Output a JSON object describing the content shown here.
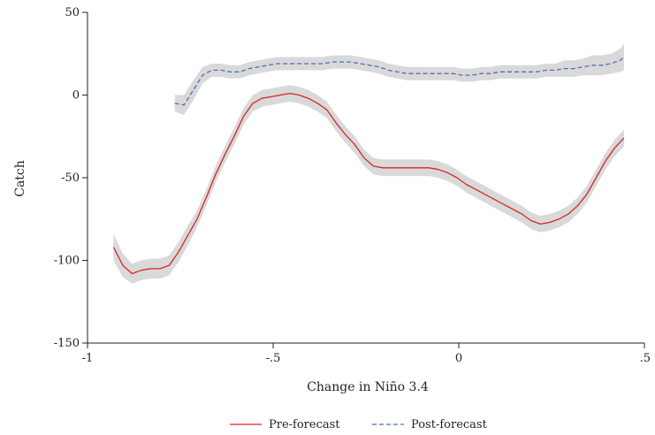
{
  "chart_data": {
    "type": "line",
    "title": "",
    "xlabel": "Change in Niño 3.4",
    "ylabel": "Catch",
    "xlim": [
      -1,
      0.5
    ],
    "ylim": [
      -150,
      50
    ],
    "x_ticks": [
      -1,
      -0.5,
      0,
      0.5
    ],
    "x_tick_labels": [
      "-1",
      "-.5",
      "0",
      ".5"
    ],
    "y_ticks": [
      -150,
      -100,
      -50,
      0,
      50
    ],
    "y_tick_labels": [
      "-150",
      "-100",
      "-50",
      "0",
      "50"
    ],
    "grid": false,
    "legend_position": "bottom",
    "series": [
      {
        "name": "Pre-forecast",
        "color": "#d62728",
        "style": "solid",
        "x": [
          -0.93,
          -0.905,
          -0.88,
          -0.855,
          -0.83,
          -0.805,
          -0.78,
          -0.755,
          -0.73,
          -0.705,
          -0.68,
          -0.655,
          -0.63,
          -0.605,
          -0.58,
          -0.555,
          -0.53,
          -0.505,
          -0.48,
          -0.455,
          -0.43,
          -0.405,
          -0.38,
          -0.355,
          -0.33,
          -0.305,
          -0.28,
          -0.255,
          -0.23,
          -0.205,
          -0.18,
          -0.155,
          -0.13,
          -0.105,
          -0.08,
          -0.055,
          -0.03,
          -0.005,
          0.02,
          0.045,
          0.07,
          0.095,
          0.12,
          0.145,
          0.17,
          0.195,
          0.22,
          0.245,
          0.27,
          0.295,
          0.32,
          0.345,
          0.37,
          0.395,
          0.42,
          0.445
        ],
        "y": [
          -92,
          -103,
          -108,
          -106,
          -105,
          -105,
          -103,
          -95,
          -85,
          -75,
          -62,
          -48,
          -36,
          -25,
          -13,
          -5,
          -2,
          -1,
          0,
          1,
          0,
          -2,
          -5,
          -9,
          -17,
          -24,
          -30,
          -38,
          -43,
          -44,
          -44,
          -44,
          -44,
          -44,
          -44,
          -45,
          -47,
          -50,
          -54,
          -57,
          -60,
          -63,
          -66,
          -69,
          -72,
          -76,
          -78,
          -77,
          -75,
          -72,
          -67,
          -60,
          -50,
          -40,
          -32,
          -26
        ],
        "lower": [
          -100,
          -110,
          -114,
          -112,
          -111,
          -111,
          -109,
          -101,
          -91,
          -80,
          -67,
          -53,
          -41,
          -30,
          -18,
          -10,
          -7,
          -6,
          -5,
          -4,
          -5,
          -7,
          -10,
          -14,
          -22,
          -29,
          -35,
          -43,
          -48,
          -49,
          -49,
          -49,
          -49,
          -49,
          -49,
          -50,
          -52,
          -55,
          -59,
          -62,
          -65,
          -68,
          -71,
          -74,
          -77,
          -81,
          -83,
          -82,
          -80,
          -77,
          -72,
          -65,
          -55,
          -45,
          -37,
          -31
        ],
        "upper": [
          -84,
          -96,
          -102,
          -100,
          -99,
          -99,
          -97,
          -89,
          -79,
          -70,
          -57,
          -43,
          -31,
          -20,
          -8,
          0,
          3,
          4,
          5,
          6,
          5,
          3,
          0,
          -4,
          -12,
          -19,
          -25,
          -33,
          -38,
          -39,
          -39,
          -39,
          -39,
          -39,
          -39,
          -40,
          -42,
          -45,
          -49,
          -52,
          -55,
          -58,
          -61,
          -64,
          -67,
          -71,
          -73,
          -72,
          -70,
          -67,
          -62,
          -55,
          -45,
          -35,
          -27,
          -21
        ]
      },
      {
        "name": "Post-forecast",
        "color": "#4c72b0",
        "style": "dashed",
        "x": [
          -0.765,
          -0.74,
          -0.715,
          -0.69,
          -0.665,
          -0.64,
          -0.615,
          -0.59,
          -0.565,
          -0.54,
          -0.515,
          -0.49,
          -0.465,
          -0.44,
          -0.415,
          -0.39,
          -0.365,
          -0.34,
          -0.315,
          -0.29,
          -0.265,
          -0.24,
          -0.215,
          -0.19,
          -0.165,
          -0.14,
          -0.115,
          -0.09,
          -0.065,
          -0.04,
          -0.015,
          0.01,
          0.035,
          0.06,
          0.085,
          0.11,
          0.135,
          0.16,
          0.185,
          0.21,
          0.235,
          0.26,
          0.285,
          0.31,
          0.335,
          0.36,
          0.385,
          0.41,
          0.435,
          0.445
        ],
        "y": [
          -5,
          -6,
          3,
          12,
          15,
          15,
          14,
          14,
          16,
          17,
          18,
          19,
          19,
          19,
          19,
          19,
          19,
          20,
          20,
          20,
          19,
          18,
          17,
          15,
          14,
          13,
          13,
          13,
          13,
          13,
          13,
          12,
          12,
          13,
          13,
          14,
          14,
          14,
          14,
          14,
          15,
          15,
          16,
          16,
          17,
          18,
          18,
          19,
          21,
          23
        ],
        "lower": [
          -10,
          -12,
          -3,
          7,
          11,
          11,
          10,
          10,
          12,
          13,
          14,
          15,
          15,
          15,
          15,
          15,
          15,
          16,
          16,
          16,
          15,
          14,
          13,
          11,
          10,
          9,
          9,
          9,
          9,
          9,
          9,
          8,
          8,
          9,
          9,
          10,
          10,
          10,
          10,
          10,
          11,
          11,
          11,
          11,
          12,
          12,
          12,
          13,
          14,
          15
        ],
        "upper": [
          0,
          0,
          9,
          17,
          19,
          19,
          18,
          18,
          20,
          21,
          22,
          23,
          23,
          23,
          23,
          23,
          23,
          24,
          24,
          24,
          23,
          22,
          21,
          19,
          18,
          17,
          17,
          17,
          17,
          17,
          17,
          16,
          16,
          17,
          17,
          18,
          18,
          18,
          18,
          18,
          19,
          19,
          21,
          21,
          22,
          24,
          24,
          25,
          28,
          31
        ]
      }
    ]
  }
}
